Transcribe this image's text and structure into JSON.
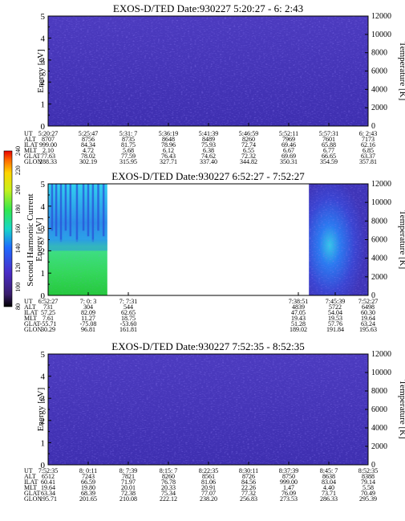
{
  "chart_data": [
    {
      "type": "heatmap",
      "title": "EXOS-D/TED   Date:930227   5:20:27 - 6: 2:43",
      "ylabel": "Energy [eV]",
      "y2label": "Temperature [K]",
      "ylim": [
        0,
        5
      ],
      "y2lim": [
        0,
        12000
      ],
      "yticks": [
        "0",
        "1",
        "2",
        "3",
        "4",
        "5"
      ],
      "y2ticks": [
        "0",
        "2000",
        "4000",
        "6000",
        "8000",
        "10000",
        "12000"
      ],
      "data_coverage": [
        [
          0,
          1
        ]
      ],
      "ephemeris": {
        "labels": [
          "UT",
          "ALT",
          "ILAT",
          "MLT",
          "GLAT",
          "GLON"
        ],
        "columns": [
          [
            "5:20:27",
            "8707",
            "999.00",
            "2.10",
            "77.63",
            "288.33"
          ],
          [
            "5:25:47",
            "8756",
            "84.34",
            "4.72",
            "78.02",
            "302.19"
          ],
          [
            "5:31: 7",
            "8735",
            "81.75",
            "5.68",
            "77.59",
            "315.95"
          ],
          [
            "5:36:19",
            "8648",
            "78.96",
            "6.12",
            "76.43",
            "327.71"
          ],
          [
            "5:41:39",
            "8489",
            "75.93",
            "6.38",
            "74.62",
            "337.40"
          ],
          [
            "5:46:59",
            "8260",
            "72.74",
            "6.55",
            "72.32",
            "344.82"
          ],
          [
            "5:52:11",
            "7969",
            "69.46",
            "6.67",
            "69.69",
            "350.31"
          ],
          [
            "5:57:31",
            "7601",
            "65.88",
            "6.77",
            "66.65",
            "354.59"
          ],
          [
            "6: 2:43",
            "7173",
            "62.16",
            "6.85",
            "63.37",
            "357.81"
          ]
        ]
      }
    },
    {
      "type": "heatmap",
      "title": "EXOS-D/TED   Date:930227   6:52:27 - 7:52:27",
      "ylabel": "Energy [eV]",
      "y2label": "Temperature [K]",
      "ylim": [
        0,
        5
      ],
      "y2lim": [
        0,
        12000
      ],
      "yticks": [
        "0",
        "1",
        "2",
        "3",
        "4",
        "5"
      ],
      "y2ticks": [
        "0",
        "2000",
        "4000",
        "6000",
        "8000",
        "10000",
        "12000"
      ],
      "data_coverage": [
        [
          0,
          0.185
        ],
        [
          0.815,
          1
        ]
      ],
      "colorbar": {
        "label": "Second Harmonic Current",
        "ticks": [
          "80",
          "100",
          "120",
          "140",
          "160",
          "180",
          "200",
          "220",
          "240"
        ]
      },
      "ephemeris": {
        "labels": [
          "UT",
          "ALT",
          "ILAT",
          "MLT",
          "GLAT",
          "GLON"
        ],
        "columns": [
          [
            "6:52:27",
            "731",
            "57.25",
            "7.61",
            "-55.71",
            "30.29"
          ],
          [
            "7: 0: 3",
            "304",
            "82.09",
            "11.27",
            "-75.08",
            "96.81"
          ],
          [
            "7: 7:31",
            "544",
            "62.65",
            "18.75",
            "-53.60",
            "161.81"
          ],
          [
            "7:38:51",
            "4839",
            "47.05",
            "19.43",
            "51.28",
            "189.02"
          ],
          [
            "7:45:39",
            "5722",
            "54.04",
            "19.53",
            "57.76",
            "191.84"
          ],
          [
            "7:52:27",
            "6498",
            "60.30",
            "19.64",
            "63.24",
            "195.63"
          ]
        ]
      }
    },
    {
      "type": "heatmap",
      "title": "EXOS-D/TED   Date:930227   7:52:35 - 8:52:35",
      "ylabel": "Energy [eV]",
      "y2label": "Temperature [K]",
      "ylim": [
        0,
        5
      ],
      "y2lim": [
        0,
        12000
      ],
      "yticks": [
        "0",
        "1",
        "2",
        "3",
        "4",
        "5"
      ],
      "y2ticks": [
        "0",
        "2000",
        "4000",
        "6000",
        "8000",
        "10000",
        "12000"
      ],
      "data_coverage": [
        [
          0,
          1
        ]
      ],
      "ephemeris": {
        "labels": [
          "UT",
          "ALT",
          "ILAT",
          "MLT",
          "GLAT",
          "GLON"
        ],
        "columns": [
          [
            "7:52:35",
            "6512",
            "60.41",
            "19.64",
            "63.34",
            "195.71"
          ],
          [
            "8: 0:11",
            "7243",
            "66.59",
            "19.80",
            "68.39",
            "201.65"
          ],
          [
            "8: 7:39",
            "7821",
            "71.97",
            "20.01",
            "72.38",
            "210.08"
          ],
          [
            "8:15: 7",
            "8260",
            "76.78",
            "20.33",
            "75.34",
            "222.12"
          ],
          [
            "8:22:35",
            "8561",
            "81.06",
            "20.91",
            "77.07",
            "238.20"
          ],
          [
            "8:30:11",
            "8726",
            "84.56",
            "22.26",
            "77.32",
            "256.83"
          ],
          [
            "8:37:39",
            "8750",
            "999.00",
            "1.47",
            "76.09",
            "273.53"
          ],
          [
            "8:45: 7",
            "8638",
            "83.04",
            "4.40",
            "73.71",
            "286.33"
          ],
          [
            "8:52:35",
            "8388",
            "79.14",
            "5.58",
            "70.49",
            "295.39"
          ]
        ]
      }
    }
  ]
}
